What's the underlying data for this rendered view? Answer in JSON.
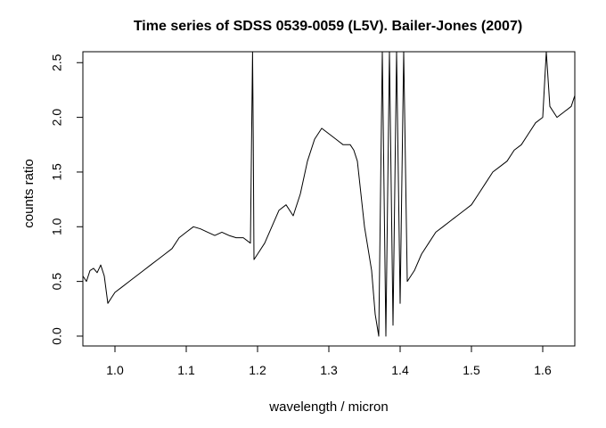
{
  "chart_data": {
    "type": "line",
    "title": "Time series of SDSS 0539-0059 (L5V). Bailer-Jones (2007)",
    "xlabel": "wavelength / micron",
    "ylabel": "counts ratio",
    "xlim": [
      0.955,
      1.645
    ],
    "ylim": [
      -0.09,
      2.6
    ],
    "xticks": [
      1.0,
      1.1,
      1.2,
      1.3,
      1.4,
      1.5,
      1.6
    ],
    "xtick_labels": [
      "1.0",
      "1.1",
      "1.2",
      "1.3",
      "1.4",
      "1.5",
      "1.6"
    ],
    "yticks": [
      0.0,
      0.5,
      1.0,
      1.5,
      2.0,
      2.5
    ],
    "ytick_labels": [
      "0.0",
      "0.5",
      "1.0",
      "1.5",
      "2.0",
      "2.5"
    ],
    "grid": false,
    "legend": "none",
    "series": [
      {
        "color": "#000000",
        "x": [
          0.955,
          0.96,
          0.965,
          0.97,
          0.975,
          0.98,
          0.985,
          0.99,
          0.995,
          1.0,
          1.01,
          1.02,
          1.03,
          1.04,
          1.05,
          1.06,
          1.07,
          1.08,
          1.09,
          1.1,
          1.11,
          1.12,
          1.13,
          1.14,
          1.15,
          1.16,
          1.17,
          1.18,
          1.19,
          1.193,
          1.194,
          1.195,
          1.2,
          1.21,
          1.22,
          1.23,
          1.24,
          1.25,
          1.26,
          1.27,
          1.28,
          1.29,
          1.3,
          1.31,
          1.32,
          1.33,
          1.335,
          1.34,
          1.345,
          1.35,
          1.355,
          1.36,
          1.365,
          1.37,
          1.375,
          1.38,
          1.385,
          1.39,
          1.395,
          1.4,
          1.405,
          1.41,
          1.42,
          1.43,
          1.44,
          1.45,
          1.46,
          1.47,
          1.48,
          1.49,
          1.5,
          1.51,
          1.52,
          1.53,
          1.54,
          1.55,
          1.56,
          1.57,
          1.58,
          1.59,
          1.6,
          1.605,
          1.61,
          1.62,
          1.63,
          1.64,
          1.645
        ],
        "y": [
          0.55,
          0.5,
          0.6,
          0.62,
          0.58,
          0.65,
          0.55,
          0.3,
          0.35,
          0.4,
          0.45,
          0.5,
          0.55,
          0.6,
          0.65,
          0.7,
          0.75,
          0.8,
          0.9,
          0.95,
          1.0,
          0.98,
          0.95,
          0.92,
          0.95,
          0.92,
          0.9,
          0.9,
          0.85,
          2.6,
          1.8,
          0.7,
          0.75,
          0.85,
          1.0,
          1.15,
          1.2,
          1.1,
          1.3,
          1.6,
          1.8,
          1.9,
          1.85,
          1.8,
          1.75,
          1.75,
          1.7,
          1.6,
          1.3,
          1.0,
          0.8,
          0.6,
          0.2,
          0.0,
          2.6,
          0.0,
          2.6,
          0.1,
          2.6,
          0.3,
          2.6,
          0.5,
          0.6,
          0.75,
          0.85,
          0.95,
          1.0,
          1.05,
          1.1,
          1.15,
          1.2,
          1.3,
          1.4,
          1.5,
          1.55,
          1.6,
          1.7,
          1.75,
          1.85,
          1.95,
          2.0,
          2.6,
          2.1,
          2.0,
          2.05,
          2.1,
          2.2
        ]
      }
    ]
  }
}
